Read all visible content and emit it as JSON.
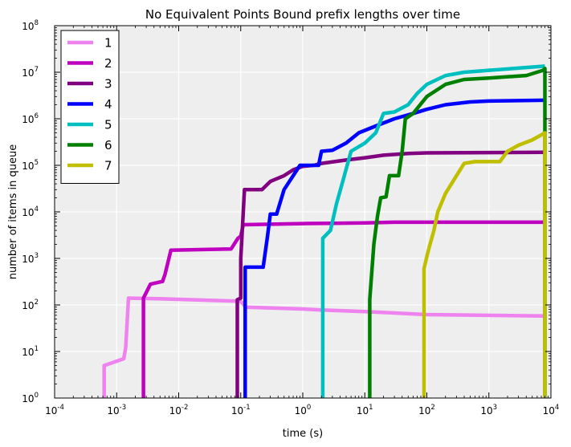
{
  "chart_data": {
    "type": "line",
    "title": "No Equivalent Points Bound prefix lengths over time",
    "xlabel": "time (s)",
    "ylabel": "number of items in queue",
    "xscale": "log",
    "yscale": "log",
    "xlim": [
      0.0001,
      10000
    ],
    "ylim": [
      1,
      100000000
    ],
    "grid": true,
    "legend_position": "top-left",
    "x_tick_exponents": [
      -4,
      -3,
      -2,
      -1,
      0,
      1,
      2,
      3,
      4
    ],
    "y_tick_exponents": [
      0,
      1,
      2,
      3,
      4,
      5,
      6,
      7,
      8
    ],
    "background": "#eeeeee",
    "series": [
      {
        "name": "1",
        "color": "#ee82ee",
        "points": [
          [
            0.00063,
            1
          ],
          [
            0.00063,
            5
          ],
          [
            0.0013,
            7
          ],
          [
            0.0014,
            12
          ],
          [
            0.00155,
            140
          ],
          [
            0.0055,
            135
          ],
          [
            0.1,
            120
          ],
          [
            0.12,
            90
          ],
          [
            1,
            82
          ],
          [
            2,
            78
          ],
          [
            10,
            72
          ],
          [
            100,
            62
          ],
          [
            8000,
            58
          ]
        ]
      },
      {
        "name": "2",
        "color": "#bf00bf",
        "points": [
          [
            0.0027,
            1
          ],
          [
            0.0027,
            140
          ],
          [
            0.0035,
            280
          ],
          [
            0.0055,
            320
          ],
          [
            0.006,
            450
          ],
          [
            0.0075,
            1500
          ],
          [
            0.07,
            1600
          ],
          [
            0.09,
            2700
          ],
          [
            0.1,
            3000
          ],
          [
            0.11,
            5300
          ],
          [
            1,
            5600
          ],
          [
            3,
            5700
          ],
          [
            10,
            5800
          ],
          [
            30,
            6000
          ],
          [
            100,
            6000
          ],
          [
            8000,
            6000
          ]
        ]
      },
      {
        "name": "3",
        "color": "#800080",
        "points": [
          [
            0.088,
            1
          ],
          [
            0.088,
            130
          ],
          [
            0.1,
            140
          ],
          [
            0.1,
            1000
          ],
          [
            0.115,
            30000
          ],
          [
            0.22,
            30000
          ],
          [
            0.3,
            45000
          ],
          [
            0.5,
            60000
          ],
          [
            0.7,
            80000
          ],
          [
            1,
            95000
          ],
          [
            1.5,
            100000
          ],
          [
            2,
            110000
          ],
          [
            5,
            130000
          ],
          [
            10,
            145000
          ],
          [
            20,
            165000
          ],
          [
            50,
            180000
          ],
          [
            100,
            185000
          ],
          [
            8000,
            190000
          ]
        ]
      },
      {
        "name": "4",
        "color": "#0000ff",
        "points": [
          [
            0.118,
            1
          ],
          [
            0.118,
            650
          ],
          [
            0.2,
            650
          ],
          [
            0.23,
            650
          ],
          [
            0.27,
            3000
          ],
          [
            0.3,
            9000
          ],
          [
            0.38,
            9000
          ],
          [
            0.5,
            30000
          ],
          [
            0.9,
            100000
          ],
          [
            1.5,
            100000
          ],
          [
            1.8,
            100000
          ],
          [
            2.0,
            200000
          ],
          [
            3,
            210000
          ],
          [
            5,
            300000
          ],
          [
            8,
            500000
          ],
          [
            15,
            700000
          ],
          [
            30,
            1000000
          ],
          [
            60,
            1300000
          ],
          [
            100,
            1600000
          ],
          [
            200,
            2000000
          ],
          [
            500,
            2300000
          ],
          [
            1000,
            2400000
          ],
          [
            8000,
            2500000
          ]
        ]
      },
      {
        "name": "5",
        "color": "#00bfbf",
        "points": [
          [
            2.1,
            1
          ],
          [
            2.1,
            2700
          ],
          [
            2.8,
            4000
          ],
          [
            3.5,
            15000
          ],
          [
            4.5,
            50000
          ],
          [
            6,
            200000
          ],
          [
            10,
            300000
          ],
          [
            15,
            500000
          ],
          [
            20,
            1300000
          ],
          [
            30,
            1400000
          ],
          [
            50,
            2000000
          ],
          [
            70,
            3500000
          ],
          [
            100,
            5500000
          ],
          [
            200,
            8500000
          ],
          [
            400,
            10000000
          ],
          [
            1000,
            11000000
          ],
          [
            8000,
            13500000
          ]
        ]
      },
      {
        "name": "6",
        "color": "#008000",
        "points": [
          [
            12,
            1
          ],
          [
            12,
            130
          ],
          [
            14,
            2000
          ],
          [
            16,
            8000
          ],
          [
            18,
            20000
          ],
          [
            22,
            21000
          ],
          [
            25,
            60000
          ],
          [
            35,
            60000
          ],
          [
            40,
            200000
          ],
          [
            45,
            1000000
          ],
          [
            60,
            1300000
          ],
          [
            100,
            3000000
          ],
          [
            200,
            5500000
          ],
          [
            400,
            7000000
          ],
          [
            1000,
            7500000
          ],
          [
            4000,
            8500000
          ],
          [
            7500,
            11000000
          ],
          [
            8000,
            12000000
          ],
          [
            8000,
            1
          ]
        ]
      },
      {
        "name": "7",
        "color": "#bfbf00",
        "points": [
          [
            90,
            1
          ],
          [
            90,
            600
          ],
          [
            100,
            1100
          ],
          [
            110,
            1800
          ],
          [
            130,
            4000
          ],
          [
            150,
            10000
          ],
          [
            200,
            25000
          ],
          [
            300,
            60000
          ],
          [
            400,
            110000
          ],
          [
            600,
            120000
          ],
          [
            1500,
            120000
          ],
          [
            2000,
            200000
          ],
          [
            3000,
            270000
          ],
          [
            5000,
            350000
          ],
          [
            7000,
            450000
          ],
          [
            8000,
            500000
          ],
          [
            8000,
            1
          ]
        ]
      }
    ]
  }
}
